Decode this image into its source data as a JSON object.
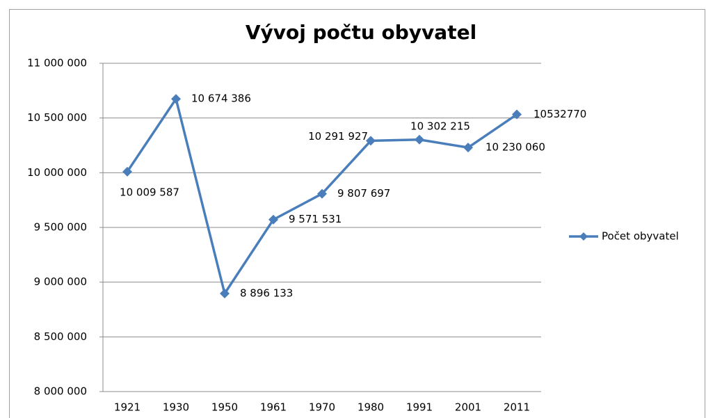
{
  "chart_data": {
    "type": "line",
    "title": "Vývoj počtu obyvatel",
    "categories": [
      "1921",
      "1930",
      "1950",
      "1961",
      "1970",
      "1980",
      "1991",
      "2001",
      "2011"
    ],
    "series": [
      {
        "name": "Počet obyvatel",
        "color": "#4a7ebb",
        "values": [
          10009587,
          10674386,
          8896133,
          9571531,
          9807697,
          10291927,
          10302215,
          10230060,
          10532770
        ],
        "value_labels": [
          "10 009 587",
          "10 674 386",
          "8 896 133",
          "9 571 531",
          "9 807 697",
          "10 291 927",
          "10 302 215",
          "10 230 060",
          "10532770"
        ]
      }
    ],
    "ylim": [
      8000000,
      11000000
    ],
    "yticks": [
      {
        "value": 8000000,
        "label": "8 000 000"
      },
      {
        "value": 8500000,
        "label": "8 500 000"
      },
      {
        "value": 9000000,
        "label": "9 000 000"
      },
      {
        "value": 9500000,
        "label": "9 500 000"
      },
      {
        "value": 10000000,
        "label": "10 000 000"
      },
      {
        "value": 10500000,
        "label": "10 500 000"
      },
      {
        "value": 11000000,
        "label": "11 000 000"
      }
    ],
    "grid": true,
    "legend": "right"
  }
}
